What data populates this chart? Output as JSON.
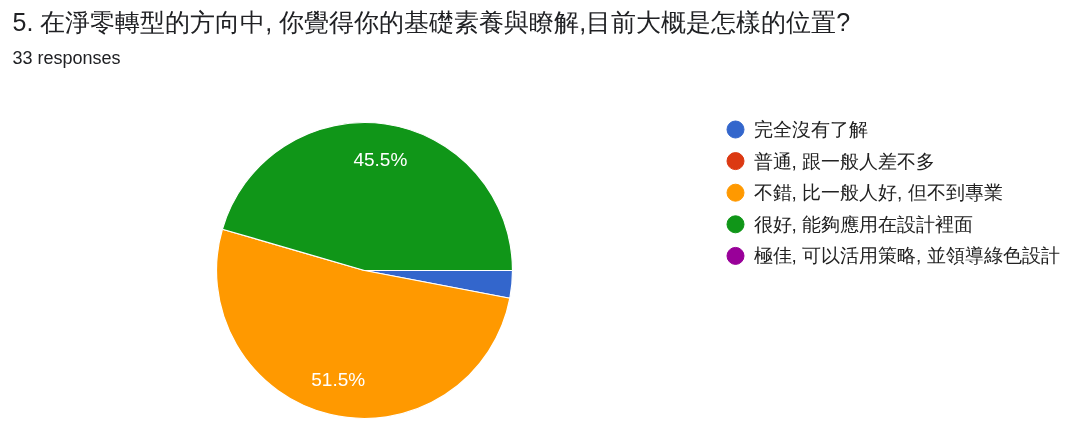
{
  "chart_data": {
    "type": "pie",
    "title": "5. 在淨零轉型的方向中, 你覺得你的基礎素養與瞭解,目前大概是怎樣的位置?",
    "subtitle": "33 responses",
    "categories": [
      "完全沒有了解",
      "普通, 跟一般人差不多",
      "不錯, 比一般人好, 但不到專業",
      "很好, 能夠應用在設計裡面",
      "極佳, 可以活用策略, 並領導綠色設計"
    ],
    "values": [
      3.0,
      0,
      51.5,
      45.5,
      0
    ],
    "colors": [
      "#3366cc",
      "#dc3912",
      "#ff9900",
      "#109618",
      "#990099"
    ],
    "value_labels": [
      null,
      null,
      "51.5%",
      "45.5%",
      null
    ],
    "legend": "right"
  }
}
